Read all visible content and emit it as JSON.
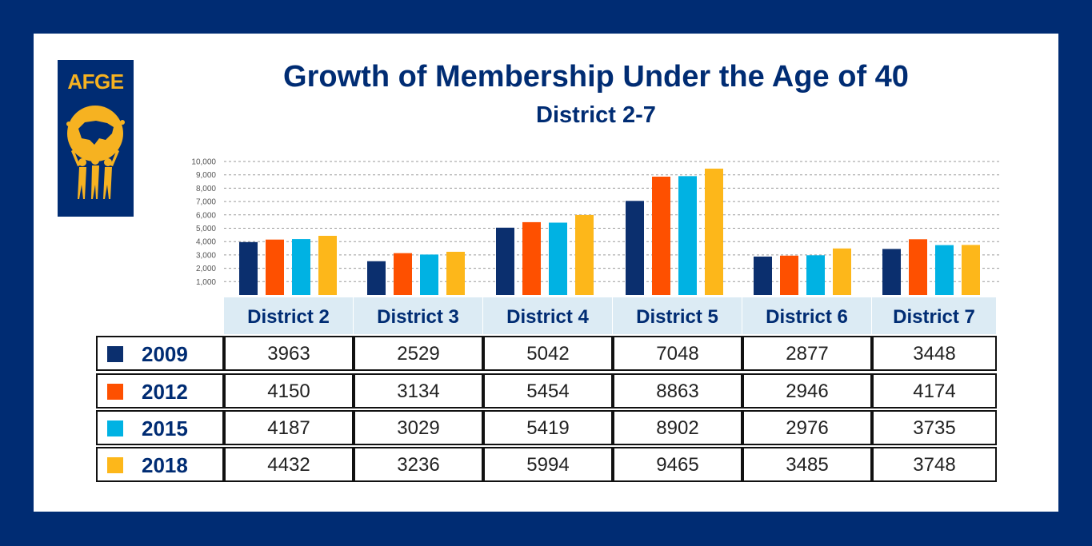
{
  "logo": {
    "text": "AFGE"
  },
  "header": {
    "title": "Growth of Membership Under the Age of 40",
    "subtitle": "District 2-7"
  },
  "colors": {
    "background": "#002c73",
    "2009": "#0b2f6e",
    "2012": "#fe5000",
    "2015": "#00b2e3",
    "2018": "#fdb71a",
    "header_fill": "#dcebf4"
  },
  "chart_data": {
    "type": "bar",
    "title": "Growth of Membership Under the Age of 40",
    "subtitle": "District 2-7",
    "categories": [
      "District 2",
      "District 3",
      "District 4",
      "District 5",
      "District 6",
      "District 7"
    ],
    "series": [
      {
        "name": "2009",
        "color": "#0b2f6e",
        "values": [
          3963,
          2529,
          5042,
          7048,
          2877,
          3448
        ]
      },
      {
        "name": "2012",
        "color": "#fe5000",
        "values": [
          4150,
          3134,
          5454,
          8863,
          2946,
          4174
        ]
      },
      {
        "name": "2015",
        "color": "#00b2e3",
        "values": [
          4187,
          3029,
          5419,
          8902,
          2976,
          3735
        ]
      },
      {
        "name": "2018",
        "color": "#fdb71a",
        "values": [
          4432,
          3236,
          5994,
          9465,
          3485,
          3748
        ]
      }
    ],
    "yticks": [
      "1,000",
      "2,000",
      "3,000",
      "4,000",
      "5,000",
      "6,000",
      "7,000",
      "8,000",
      "9,000",
      "10,000"
    ],
    "ylim": [
      0,
      10000
    ],
    "grid": true,
    "gridStyle": "dashed",
    "legend": "table-left"
  },
  "table": {
    "headers": [
      "District 2",
      "District 3",
      "District 4",
      "District 5",
      "District 6",
      "District 7"
    ],
    "rows": [
      {
        "year": "2009",
        "values": [
          "3963",
          "2529",
          "5042",
          "7048",
          "2877",
          "3448"
        ]
      },
      {
        "year": "2012",
        "values": [
          "4150",
          "3134",
          "5454",
          "8863",
          "2946",
          "4174"
        ]
      },
      {
        "year": "2015",
        "values": [
          "4187",
          "3029",
          "5419",
          "8902",
          "2976",
          "3735"
        ]
      },
      {
        "year": "2018",
        "values": [
          "4432",
          "3236",
          "5994",
          "9465",
          "3485",
          "3748"
        ]
      }
    ]
  }
}
